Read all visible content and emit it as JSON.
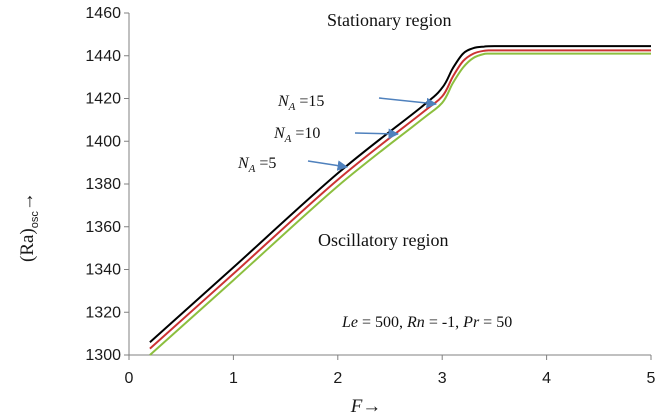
{
  "chart_data": {
    "type": "line",
    "title": "",
    "xlabel": "F→",
    "ylabel": {
      "main": "(Ra)",
      "sub": "osc",
      "arrow": "→"
    },
    "xlim": [
      0,
      5
    ],
    "ylim": [
      1300,
      1460
    ],
    "xticks": [
      "0",
      "1",
      "2",
      "3",
      "4",
      "5"
    ],
    "yticks": [
      "1300",
      "1320",
      "1340",
      "1360",
      "1380",
      "1400",
      "1420",
      "1440",
      "1460"
    ],
    "grid": false,
    "legend": "none",
    "series": [
      {
        "label_parts": [
          "N",
          "A",
          " =15"
        ],
        "color": "#000000",
        "x": [
          0.2,
          1,
          2,
          2.8,
          3.0,
          3.1,
          3.2,
          3.3,
          3.4,
          3.5,
          4,
          5
        ],
        "y": [
          1306,
          1341,
          1385,
          1416,
          1425,
          1434,
          1441,
          1443.6,
          1444.3,
          1444.5,
          1444.5,
          1444.5
        ]
      },
      {
        "label_parts": [
          "N",
          "A",
          " =10"
        ],
        "color": "#cc3333",
        "x": [
          0.2,
          1,
          2,
          2.8,
          3.0,
          3.1,
          3.2,
          3.3,
          3.4,
          3.5,
          4,
          5
        ],
        "y": [
          1303,
          1338,
          1382,
          1413,
          1421,
          1430,
          1437.5,
          1441,
          1442.3,
          1442.5,
          1442.5,
          1442.5
        ]
      },
      {
        "label_parts": [
          "N",
          "A",
          " =5"
        ],
        "color": "#8cbf3f",
        "x": [
          0.2,
          1,
          2,
          2.8,
          3.0,
          3.1,
          3.2,
          3.3,
          3.4,
          3.5,
          4,
          5
        ],
        "y": [
          1300,
          1335,
          1379,
          1410,
          1418,
          1427,
          1434.5,
          1439,
          1440.8,
          1441,
          1441,
          1441
        ]
      }
    ],
    "annotations": {
      "stationary": "Stationary region",
      "oscillatory": "Oscillatory region",
      "params": {
        "le_var": "Le",
        "le_val": " = 500, ",
        "rn_var": "Rn",
        "rn_val": " = -1, ",
        "pr_var": "Pr",
        "pr_val": " =  50"
      }
    },
    "colors": {
      "arrow": "#4f81bd",
      "axis": "#808080"
    }
  }
}
